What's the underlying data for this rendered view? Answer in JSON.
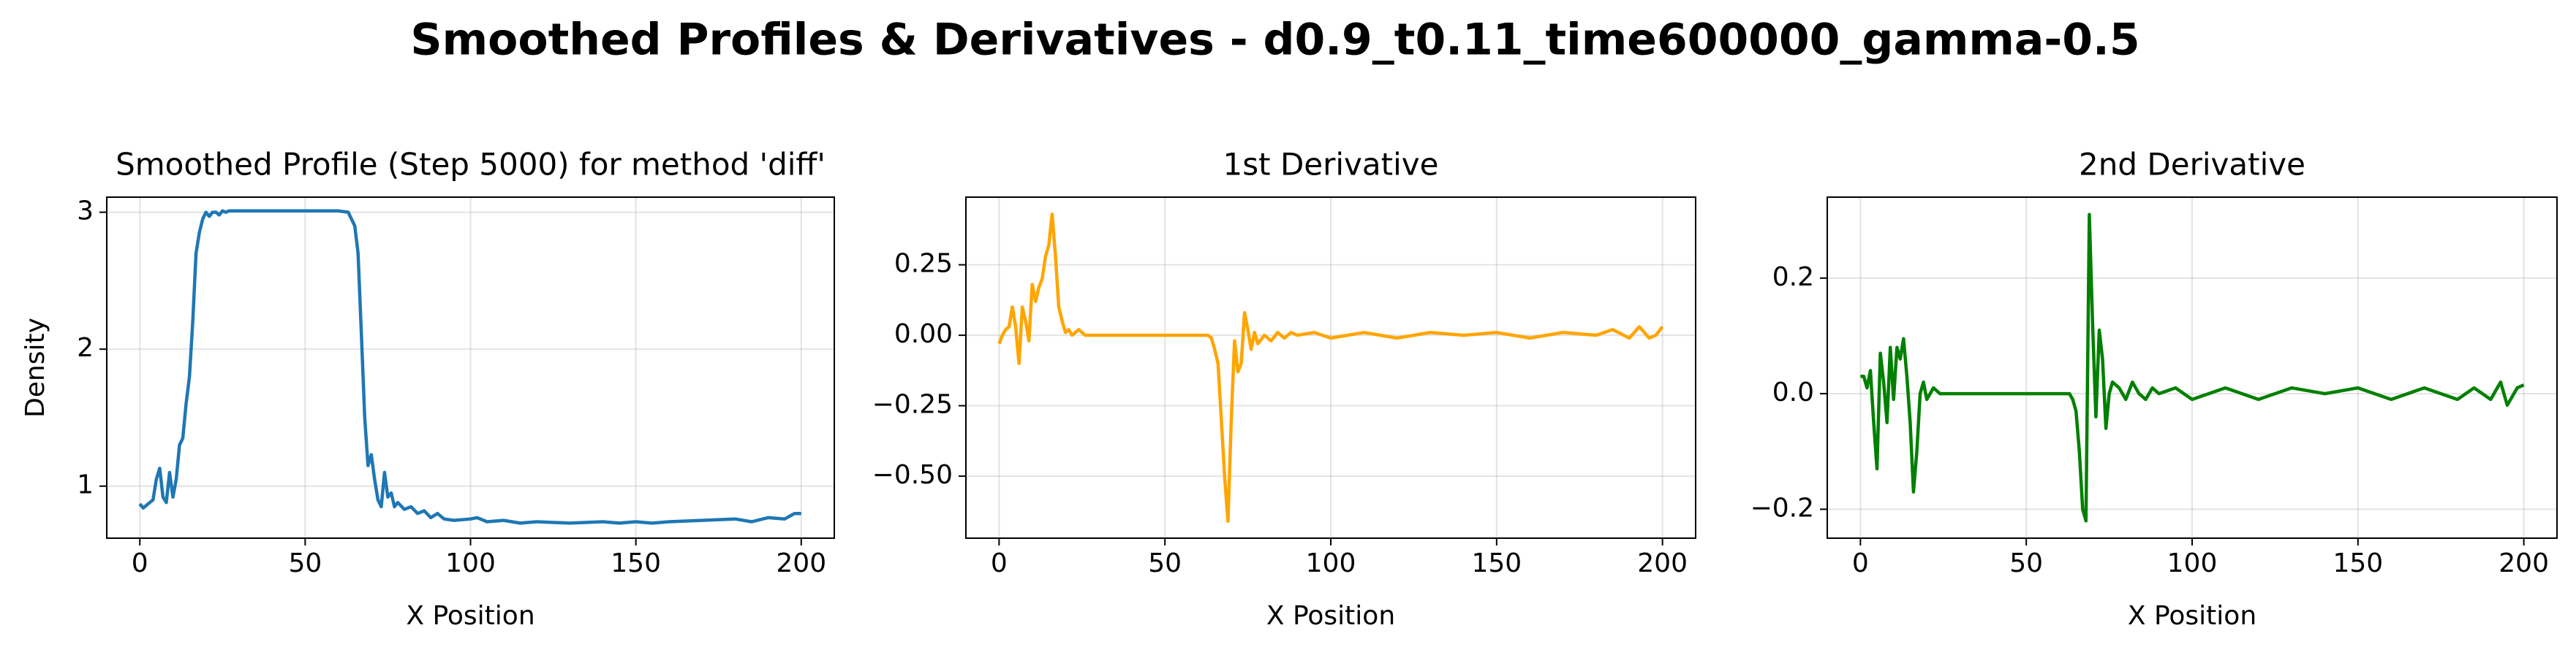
{
  "title": "Smoothed Profiles & Derivatives - d0.9_t0.11_time600000_gamma-0.5",
  "chart_data": [
    {
      "type": "line",
      "title": "Smoothed Profile (Step 5000) for method 'diff'",
      "xlabel": "X Position",
      "ylabel": "Density",
      "xlim": [
        -10,
        210
      ],
      "xticks": [
        0,
        50,
        100,
        150,
        200
      ],
      "ylim": [
        0.62,
        3.11
      ],
      "yticks": [
        1,
        2,
        3
      ],
      "grid": true,
      "x": [
        0,
        1,
        2,
        3,
        4,
        5,
        6,
        7,
        8,
        9,
        10,
        11,
        12,
        13,
        14,
        15,
        16,
        17,
        18,
        19,
        20,
        21,
        22,
        23,
        24,
        25,
        26,
        27,
        30,
        40,
        50,
        60,
        63,
        64,
        65,
        66,
        67,
        68,
        69,
        70,
        71,
        72,
        73,
        74,
        75,
        76,
        77,
        78,
        80,
        82,
        84,
        86,
        88,
        90,
        92,
        95,
        100,
        102,
        105,
        110,
        115,
        120,
        130,
        140,
        145,
        150,
        155,
        160,
        170,
        180,
        185,
        190,
        195,
        198,
        200
      ],
      "series": [
        {
          "name": "Density",
          "color": "#1f77b4",
          "values": [
            0.87,
            0.84,
            0.86,
            0.88,
            0.9,
            1.05,
            1.13,
            0.92,
            0.88,
            1.1,
            0.92,
            1.05,
            1.3,
            1.35,
            1.6,
            1.8,
            2.2,
            2.7,
            2.85,
            2.95,
            3.0,
            2.97,
            3.0,
            3.0,
            2.98,
            3.01,
            3.0,
            3.01,
            3.01,
            3.01,
            3.01,
            3.01,
            3.0,
            2.95,
            2.9,
            2.7,
            2.1,
            1.5,
            1.15,
            1.23,
            1.05,
            0.9,
            0.85,
            1.1,
            0.92,
            0.95,
            0.85,
            0.88,
            0.83,
            0.85,
            0.8,
            0.82,
            0.77,
            0.8,
            0.76,
            0.75,
            0.76,
            0.77,
            0.74,
            0.75,
            0.73,
            0.74,
            0.73,
            0.74,
            0.73,
            0.74,
            0.73,
            0.74,
            0.75,
            0.76,
            0.74,
            0.77,
            0.76,
            0.8,
            0.8
          ]
        }
      ]
    },
    {
      "type": "line",
      "title": "1st Derivative",
      "xlabel": "X Position",
      "xlim": [
        -10,
        210
      ],
      "xticks": [
        0,
        50,
        100,
        150,
        200
      ],
      "ylim": [
        -0.72,
        0.49
      ],
      "yticks": [
        {
          "value": -0.5,
          "label": "−0.50"
        },
        {
          "value": -0.25,
          "label": "−0.25"
        },
        {
          "value": 0,
          "label": "0.00"
        },
        {
          "value": 0.25,
          "label": "0.25"
        }
      ],
      "grid": true,
      "x": [
        0,
        1,
        2,
        3,
        4,
        5,
        6,
        7,
        8,
        9,
        10,
        11,
        12,
        13,
        14,
        15,
        16,
        17,
        18,
        19,
        20,
        21,
        22,
        24,
        26,
        30,
        40,
        50,
        60,
        63,
        64,
        65,
        66,
        67,
        68,
        69,
        70,
        71,
        72,
        73,
        74,
        75,
        76,
        77,
        78,
        80,
        82,
        84,
        86,
        88,
        90,
        95,
        100,
        110,
        120,
        130,
        140,
        150,
        160,
        170,
        180,
        185,
        190,
        193,
        196,
        198,
        200
      ],
      "series": [
        {
          "name": "1st Derivative",
          "color": "#ffa500",
          "values": [
            -0.03,
            0,
            0.02,
            0.03,
            0.1,
            0.03,
            -0.1,
            0.1,
            0.05,
            -0.02,
            0.18,
            0.12,
            0.17,
            0.2,
            0.28,
            0.32,
            0.43,
            0.28,
            0.1,
            0.05,
            0.01,
            0.02,
            0,
            0.02,
            0,
            0,
            0,
            0,
            0,
            0,
            -0.01,
            -0.05,
            -0.1,
            -0.3,
            -0.5,
            -0.66,
            -0.3,
            -0.02,
            -0.13,
            -0.1,
            0.08,
            0.02,
            -0.05,
            0.01,
            -0.03,
            0,
            -0.02,
            0.01,
            -0.01,
            0.01,
            0,
            0.01,
            -0.01,
            0.01,
            -0.01,
            0.01,
            0,
            0.01,
            -0.01,
            0.01,
            0,
            0.02,
            -0.01,
            0.03,
            -0.01,
            0,
            0.03
          ]
        }
      ]
    },
    {
      "type": "line",
      "title": "2nd Derivative",
      "xlabel": "X Position",
      "xlim": [
        -10,
        210
      ],
      "xticks": [
        0,
        50,
        100,
        150,
        200
      ],
      "ylim": [
        -0.25,
        0.34
      ],
      "yticks": [
        {
          "value": -0.2,
          "label": "−0.2"
        },
        {
          "value": 0,
          "label": "0.0"
        },
        {
          "value": 0.2,
          "label": "0.2"
        }
      ],
      "grid": true,
      "x": [
        0,
        1,
        2,
        3,
        4,
        5,
        6,
        7,
        8,
        9,
        10,
        11,
        12,
        13,
        14,
        15,
        16,
        17,
        18,
        19,
        20,
        22,
        24,
        30,
        40,
        50,
        60,
        63,
        64,
        65,
        66,
        67,
        68,
        69,
        70,
        71,
        72,
        73,
        74,
        75,
        76,
        78,
        80,
        82,
        84,
        86,
        88,
        90,
        95,
        100,
        110,
        120,
        130,
        140,
        150,
        160,
        170,
        180,
        185,
        190,
        193,
        195,
        198,
        200
      ],
      "series": [
        {
          "name": "2nd Derivative",
          "color": "#008000",
          "values": [
            0.03,
            0.03,
            0.01,
            0.04,
            -0.05,
            -0.13,
            0.07,
            0.02,
            -0.05,
            0.08,
            -0.01,
            0.08,
            0.06,
            0.095,
            0.03,
            -0.05,
            -0.17,
            -0.1,
            0,
            0.02,
            -0.01,
            0.01,
            0,
            0,
            0,
            0,
            0,
            0,
            -0.01,
            -0.03,
            -0.1,
            -0.2,
            -0.22,
            0.31,
            0.12,
            -0.04,
            0.11,
            0.06,
            -0.06,
            0,
            0.02,
            0.01,
            -0.01,
            0.02,
            0,
            -0.01,
            0.01,
            0,
            0.01,
            -0.01,
            0.01,
            -0.01,
            0.01,
            0,
            0.01,
            -0.01,
            0.01,
            -0.01,
            0.01,
            -0.01,
            0.02,
            -0.02,
            0.01,
            0.015
          ]
        }
      ]
    }
  ]
}
